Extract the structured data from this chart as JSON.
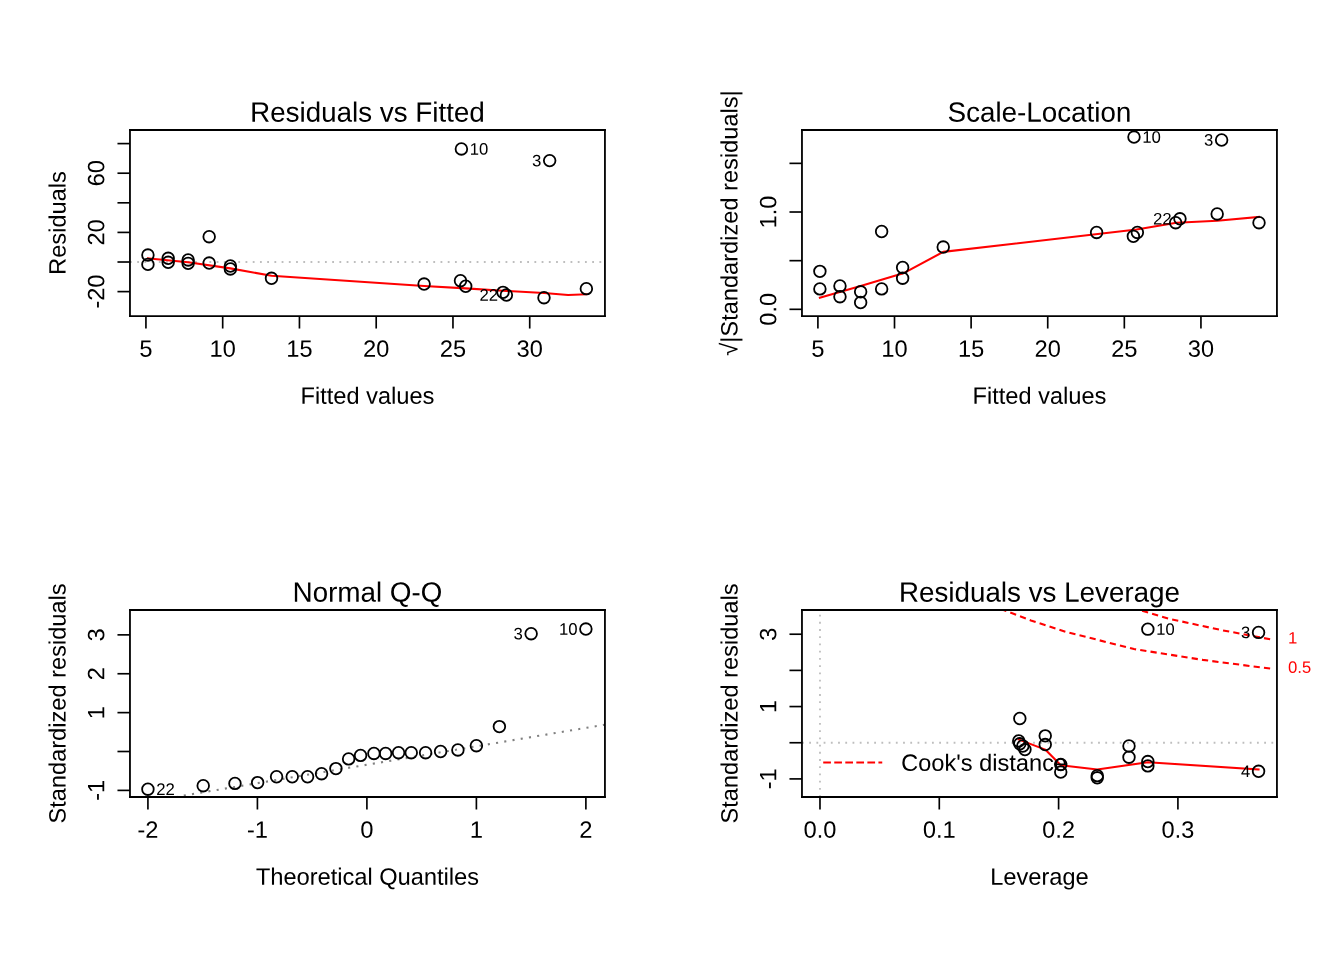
{
  "chart_data": [
    {
      "type": "scatter",
      "title": "Residuals vs Fitted",
      "xlabel": "Fitted values",
      "ylabel": "Residuals",
      "grid": false,
      "xlim": [
        3.96,
        34.9
      ],
      "ylim": [
        -36.5,
        89.2
      ],
      "xticks": [
        5,
        10,
        15,
        20,
        25,
        30
      ],
      "yticks": [
        -20,
        {
          "value": 0,
          "label": null
        },
        20,
        {
          "value": 40,
          "label": null
        },
        60,
        {
          "value": 80,
          "label": null
        }
      ],
      "series": [
        {
          "marker": "circle",
          "color": "#000000",
          "x": [
            5.13,
            5.13,
            6.45,
            6.45,
            7.75,
            7.75,
            9.12,
            9.12,
            10.5,
            10.5,
            13.18,
            23.12,
            25.49,
            25.83,
            28.26,
            28.48,
            30.93,
            33.69,
            25.55,
            31.3
          ],
          "values": [
            4.7,
            -1.6,
            2.5,
            -0.2,
            1.4,
            -0.9,
            17.1,
            -0.7,
            -2.7,
            -4.7,
            -11.0,
            -14.9,
            -12.6,
            -16.4,
            -20.5,
            -22.3,
            -24.1,
            -18.0,
            76.4,
            68.5
          ]
        },
        {
          "type": "line",
          "color": "#ff0000",
          "line_style": "solid",
          "x": [
            5.13,
            7.75,
            10.5,
            13.18,
            23.12,
            25.83,
            28.26,
            30.93,
            32.5,
            33.69
          ],
          "values": [
            2.5,
            -0.2,
            -4.3,
            -9.3,
            -16.2,
            -17.8,
            -19.4,
            -20.9,
            -22.3,
            -21.8
          ]
        }
      ],
      "ref_lines": [
        {
          "axis": "y",
          "value": 0,
          "color": "#bebebe",
          "line_style": "dotted"
        }
      ],
      "annotations": [
        {
          "text": "10",
          "x": 25.55,
          "y": 76.4
        },
        {
          "text": "3",
          "x": 31.3,
          "y": 68.5
        },
        {
          "text": "22",
          "x": 28.48,
          "y": -22.3
        }
      ]
    },
    {
      "type": "scatter",
      "title": "Scale-Location",
      "xlabel": "Fitted values",
      "ylabel": "√|Standardized residuals|",
      "grid": false,
      "xlim": [
        3.96,
        34.96
      ],
      "ylim": [
        -0.069,
        1.843
      ],
      "xticks": [
        5,
        10,
        15,
        20,
        25,
        30
      ],
      "yticks": [
        {
          "value": 0,
          "label": "0.0"
        },
        {
          "value": 0.5,
          "label": null
        },
        {
          "value": 1,
          "label": "1.0"
        },
        {
          "value": 1.5,
          "label": null
        }
      ],
      "series": [
        {
          "marker": "circle",
          "color": "#000000",
          "x": [
            5.13,
            5.13,
            6.44,
            6.44,
            7.79,
            7.79,
            9.16,
            9.16,
            10.53,
            10.53,
            13.18,
            23.19,
            25.59,
            25.85,
            28.35,
            28.63,
            31.06,
            33.79,
            25.63,
            31.35
          ],
          "values": [
            0.39,
            0.21,
            0.24,
            0.13,
            0.18,
            0.07,
            0.8,
            0.21,
            0.43,
            0.32,
            0.64,
            0.79,
            0.75,
            0.79,
            0.89,
            0.93,
            0.98,
            0.89,
            1.77,
            1.74
          ]
        },
        {
          "type": "line",
          "color": "#ff0000",
          "line_style": "solid",
          "x": [
            5.13,
            7.79,
            10.57,
            13.18,
            25.8,
            28.4,
            31.06,
            33.79
          ],
          "values": [
            0.12,
            0.24,
            0.37,
            0.59,
            0.82,
            0.89,
            0.91,
            0.95
          ]
        }
      ],
      "annotations": [
        {
          "text": "10",
          "x": 25.63,
          "y": 1.77
        },
        {
          "text": "3",
          "x": 31.35,
          "y": 1.74
        },
        {
          "text": "22",
          "x": 28.63,
          "y": 0.93
        }
      ]
    },
    {
      "type": "scatter",
      "title": "Normal Q-Q",
      "xlabel": "Theoretical Quantiles",
      "ylabel": "Standardized residuals",
      "grid": false,
      "xlim": [
        -2.164,
        2.174
      ],
      "ylim": [
        -1.17,
        3.64
      ],
      "xticks": [
        -2,
        -1,
        0,
        1,
        2
      ],
      "yticks": [
        -1,
        {
          "value": 0,
          "label": null
        },
        1,
        2,
        3
      ],
      "series": [
        {
          "marker": "circle",
          "color": "#000000",
          "x": [
            -2.0,
            -1.495,
            -1.205,
            -0.998,
            -0.825,
            -0.682,
            -0.542,
            -0.414,
            -0.283,
            -0.167,
            -0.058,
            0.064,
            0.171,
            0.289,
            0.405,
            0.536,
            0.673,
            0.831,
            1.0,
            1.21,
            1.5,
            2.0
          ],
          "values": [
            -0.97,
            -0.88,
            -0.82,
            -0.8,
            -0.65,
            -0.65,
            -0.65,
            -0.57,
            -0.44,
            -0.19,
            -0.1,
            -0.05,
            -0.05,
            -0.03,
            -0.03,
            -0.03,
            0.0,
            0.04,
            0.15,
            0.64,
            3.03,
            3.15
          ]
        },
        {
          "type": "line",
          "color": "#808080",
          "line_style": "dotted",
          "x": [
            -1.73,
            2.174
          ],
          "values": [
            -1.16,
            0.69
          ]
        }
      ],
      "annotations": [
        {
          "text": "22",
          "x": -2.0,
          "y": -0.97
        },
        {
          "text": "3",
          "x": 1.5,
          "y": 3.03
        },
        {
          "text": "10",
          "x": 2.0,
          "y": 3.15
        }
      ]
    },
    {
      "type": "scatter",
      "title": "Residuals vs Leverage",
      "xlabel": "Leverage",
      "ylabel": "Standardized residuals",
      "grid": false,
      "legend": "bottom left",
      "xlim": [
        -0.0151,
        0.383
      ],
      "ylim": [
        -1.5,
        3.67
      ],
      "xticks": [
        {
          "value": 0,
          "label": "0.0"
        },
        {
          "value": 0.1,
          "label": "0.1"
        },
        {
          "value": 0.2,
          "label": "0.2"
        },
        {
          "value": 0.3,
          "label": "0.3"
        }
      ],
      "yticks": [
        -1,
        {
          "value": 0,
          "label": null
        },
        1,
        {
          "value": 2,
          "label": null
        },
        3
      ],
      "series": [
        {
          "marker": "circle",
          "color": "#000000",
          "x": [
            0.1675,
            0.1666,
            0.1675,
            0.17,
            0.1718,
            0.1888,
            0.1888,
            0.2018,
            0.2018,
            0.2324,
            0.2324,
            0.259,
            0.259,
            0.2748,
            0.2748,
            0.3676,
            0.2748,
            0.3676
          ],
          "values": [
            0.67,
            0.05,
            -0.03,
            -0.09,
            -0.19,
            0.19,
            -0.05,
            -0.6,
            -0.81,
            -0.91,
            -0.97,
            -0.09,
            -0.4,
            -0.52,
            -0.64,
            -0.79,
            3.14,
            3.05
          ]
        },
        {
          "type": "line",
          "color": "#ff0000",
          "line_style": "solid",
          "x": [
            0.1666,
            0.1888,
            0.2018,
            0.2324,
            0.2748,
            0.3676
          ],
          "values": [
            0.09,
            -0.19,
            -0.62,
            -0.74,
            -0.54,
            -0.74
          ]
        },
        {
          "type": "line",
          "name": "Cook's distance",
          "color": "#ff0000",
          "line_style": "dashed",
          "x": [
            0.2677,
            0.2922,
            0.3355,
            0.3773
          ],
          "values": [
            3.67,
            3.43,
            3.12,
            2.86
          ]
        },
        {
          "type": "line",
          "color": "#ff0000",
          "line_style": "dashed",
          "x": [
            0.1538,
            0.1768,
            0.2057,
            0.2632,
            0.3209,
            0.3773
          ],
          "values": [
            3.67,
            3.38,
            3.07,
            2.59,
            2.29,
            2.05
          ]
        }
      ],
      "ref_lines": [
        {
          "axis": "y",
          "value": 0,
          "color": "#bebebe",
          "line_style": "dotted"
        },
        {
          "axis": "x",
          "value": 0,
          "color": "#bebebe",
          "line_style": "dotted"
        }
      ],
      "annotations": [
        {
          "text": "10",
          "x": 0.2748,
          "y": 3.14
        },
        {
          "text": "3",
          "x": 0.3676,
          "y": 3.05
        },
        {
          "text": "4",
          "x": 0.3676,
          "y": -0.79
        },
        {
          "text": "1",
          "x": 0.3773,
          "y": 2.86
        },
        {
          "text": "0.5",
          "x": 0.3773,
          "y": 2.05
        }
      ]
    }
  ]
}
